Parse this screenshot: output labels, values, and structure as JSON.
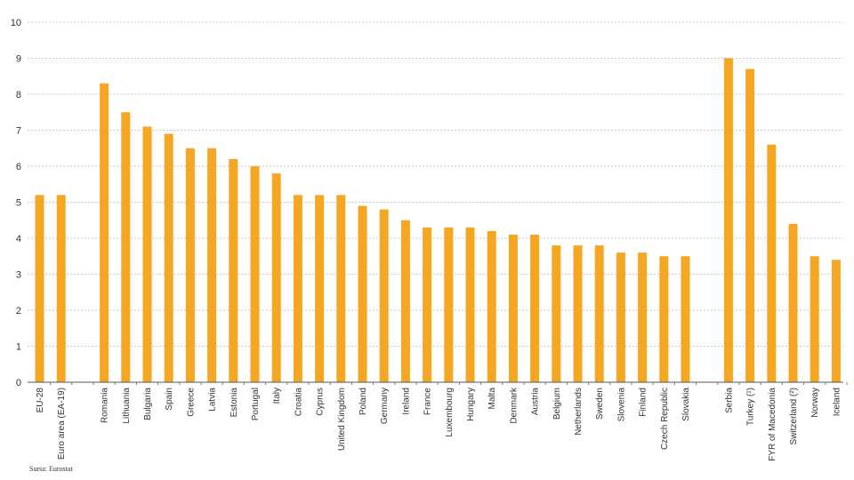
{
  "chart_data": {
    "type": "bar",
    "categories": [
      "EU-28",
      "Euro area (EA-19)",
      "",
      "Romania",
      "Lithuania",
      "Bulgaria",
      "Spain",
      "Greece",
      "Latvia",
      "Estonia",
      "Portugal",
      "Italy",
      "Croatia",
      "Cyprus",
      "United Kingdom",
      "Poland",
      "Germany",
      "Ireland",
      "France",
      "Luxembourg",
      "Hungary",
      "Malta",
      "Denmark",
      "Austria",
      "Belgium",
      "Netherlands",
      "Sweden",
      "Slovenia",
      "Finland",
      "Czech Republic",
      "Slovakia",
      "",
      "Serbia",
      "Turkey (¹)",
      "FYR of Macedonia",
      "Switzerland (²)",
      "Norway",
      "Iceland"
    ],
    "values": [
      5.2,
      5.2,
      null,
      8.3,
      7.5,
      7.1,
      6.9,
      6.5,
      6.5,
      6.2,
      6.0,
      5.8,
      5.2,
      5.2,
      5.2,
      4.9,
      4.8,
      4.5,
      4.3,
      4.3,
      4.3,
      4.2,
      4.1,
      4.1,
      3.8,
      3.8,
      3.8,
      3.6,
      3.6,
      3.5,
      3.5,
      null,
      9.0,
      8.7,
      6.6,
      4.4,
      3.5,
      3.4
    ],
    "ylim": [
      0,
      10
    ],
    "yticks": [
      0,
      1,
      2,
      3,
      4,
      5,
      6,
      7,
      8,
      9,
      10
    ],
    "grid": true,
    "bar_color": "#F5A623",
    "title": "",
    "xlabel": "",
    "ylabel": ""
  },
  "source": "Sursa: Eurostat"
}
